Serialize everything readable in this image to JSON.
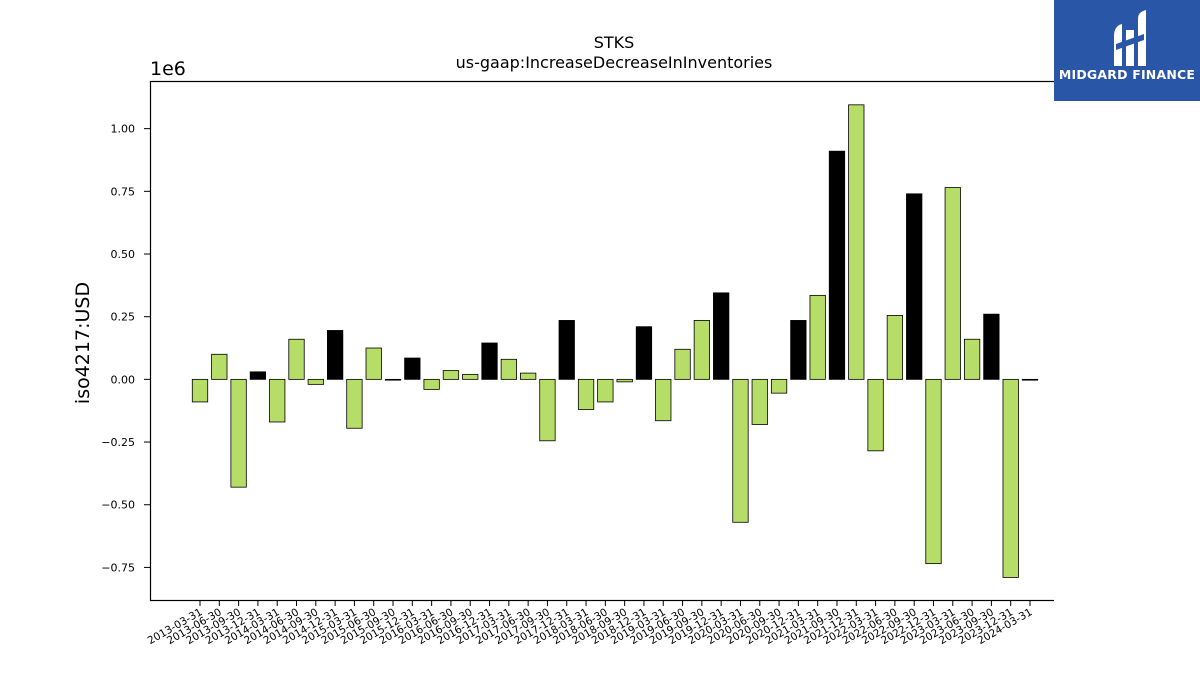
{
  "chart_data": {
    "type": "bar",
    "title": "STKS",
    "subtitle": "us-gaap:IncreaseDecreaseInInventories",
    "ylabel": "iso4217:USD",
    "xlabel": "",
    "offset_label": "1e6",
    "ylim": [
      -0.88,
      1.19
    ],
    "yticks": [
      -0.75,
      -0.5,
      -0.25,
      0.0,
      0.25,
      0.5,
      0.75,
      1.0
    ],
    "ytick_labels": [
      "−0.75",
      "−0.50",
      "−0.25",
      "0.00",
      "0.25",
      "0.50",
      "0.75",
      "1.00"
    ],
    "grid": false,
    "categories": [
      "2013-03-31",
      "2013-06-30",
      "2013-09-30",
      "2013-12-31",
      "2014-03-31",
      "2014-06-30",
      "2014-09-30",
      "2014-12-31",
      "2015-03-31",
      "2015-06-30",
      "2015-09-30",
      "2015-12-31",
      "2016-03-31",
      "2016-06-30",
      "2016-09-30",
      "2016-12-31",
      "2017-03-31",
      "2017-06-30",
      "2017-09-30",
      "2017-12-31",
      "2018-03-31",
      "2018-06-30",
      "2018-09-30",
      "2018-12-31",
      "2019-03-31",
      "2019-06-30",
      "2019-09-30",
      "2019-12-31",
      "2020-03-31",
      "2020-06-30",
      "2020-09-30",
      "2020-12-31",
      "2021-03-31",
      "2021-09-30",
      "2021-12-31",
      "2022-03-31",
      "2022-06-30",
      "2022-09-30",
      "2022-12-31",
      "2023-03-31",
      "2023-06-30",
      "2023-09-30",
      "2023-12-31",
      "2024-03-31"
    ],
    "values": [
      -0.09,
      0.1,
      -0.43,
      0.03,
      -0.17,
      0.16,
      -0.02,
      0.195,
      -0.195,
      0.125,
      0.0,
      0.085,
      -0.04,
      0.035,
      0.02,
      0.145,
      0.08,
      0.025,
      -0.245,
      0.235,
      -0.12,
      -0.09,
      -0.01,
      0.21,
      -0.165,
      0.12,
      0.235,
      0.345,
      -0.57,
      -0.18,
      -0.055,
      0.235,
      0.335,
      0.91,
      1.095,
      -0.285,
      0.255,
      0.74,
      -0.735,
      0.765,
      0.16,
      0.26,
      -0.79,
      0.0
    ],
    "bar_colors": [
      "#b5dd67",
      "#b5dd67",
      "#b5dd67",
      "#000000",
      "#b5dd67",
      "#b5dd67",
      "#b5dd67",
      "#000000",
      "#b5dd67",
      "#b5dd67",
      "#b5dd67",
      "#000000",
      "#b5dd67",
      "#b5dd67",
      "#b5dd67",
      "#000000",
      "#b5dd67",
      "#b5dd67",
      "#b5dd67",
      "#000000",
      "#b5dd67",
      "#b5dd67",
      "#b5dd67",
      "#000000",
      "#b5dd67",
      "#b5dd67",
      "#b5dd67",
      "#000000",
      "#b5dd67",
      "#b5dd67",
      "#b5dd67",
      "#000000",
      "#b5dd67",
      "#000000",
      "#b5dd67",
      "#b5dd67",
      "#b5dd67",
      "#000000",
      "#b5dd67",
      "#b5dd67",
      "#b5dd67",
      "#000000",
      "#b5dd67",
      "#b5dd67"
    ]
  },
  "logo": {
    "text": "MIDGARD FINANCE",
    "background": "#2a56a8",
    "icon": "midgard-logo-icon"
  }
}
